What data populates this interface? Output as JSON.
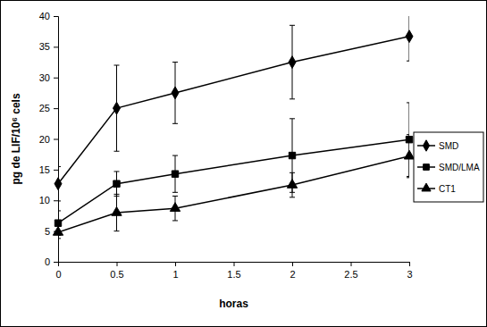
{
  "chart_data": {
    "type": "line",
    "x_label": "horas",
    "y_label": "pg de LIF/10⁶ cels",
    "x": [
      0,
      0.5,
      1,
      2,
      3
    ],
    "xlim": [
      0,
      3
    ],
    "xticks": [
      0,
      0.5,
      1,
      1.5,
      2,
      2.5,
      3
    ],
    "ylim": [
      0,
      40
    ],
    "yticks": [
      0,
      5,
      10,
      15,
      20,
      25,
      30,
      35,
      40
    ],
    "grid": false,
    "legend": "right",
    "series": [
      {
        "name": "SMD",
        "color": "#000000",
        "marker": "diamond",
        "line_style": "solid",
        "values": [
          12.7,
          25,
          27.5,
          32.5,
          36.7
        ],
        "errors": [
          2.8,
          7,
          5,
          6,
          4
        ]
      },
      {
        "name": "SMD/LMA",
        "color": "#000000",
        "marker": "square",
        "line_style": "solid",
        "values": [
          6.3,
          12.7,
          14.3,
          17.3,
          19.9
        ],
        "errors": [
          2,
          2,
          3,
          6,
          6
        ]
      },
      {
        "name": "CT1",
        "color": "#000000",
        "marker": "triangle",
        "line_style": "solid",
        "values": [
          4.8,
          8,
          8.7,
          12.5,
          17.2
        ],
        "errors": [
          1,
          3,
          2,
          2,
          3.5
        ]
      }
    ]
  }
}
